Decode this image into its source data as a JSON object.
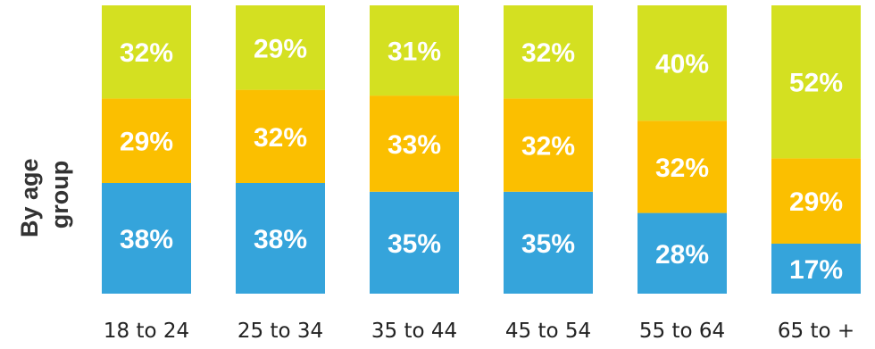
{
  "chart_data": {
    "type": "bar",
    "stacked": true,
    "group_label": [
      "By age",
      "group"
    ],
    "categories": [
      "18 to 24",
      "25 to 34",
      "35 to 44",
      "45 to 54",
      "55 to 64",
      "65 to +"
    ],
    "series": [
      {
        "values": [
          38,
          38,
          35,
          35,
          28,
          17
        ],
        "labels": [
          "38%",
          "38%",
          "35%",
          "35%",
          "28%",
          "17%"
        ],
        "color": "#35a4db"
      },
      {
        "values": [
          29,
          32,
          33,
          32,
          32,
          29
        ],
        "labels": [
          "29%",
          "32%",
          "33%",
          "32%",
          "32%",
          "29%"
        ],
        "color": "#fbbf00"
      },
      {
        "values": [
          32,
          29,
          31,
          32,
          40,
          52
        ],
        "labels": [
          "32%",
          "29%",
          "31%",
          "32%",
          "40%",
          "52%"
        ],
        "color": "#d4e021"
      }
    ]
  }
}
